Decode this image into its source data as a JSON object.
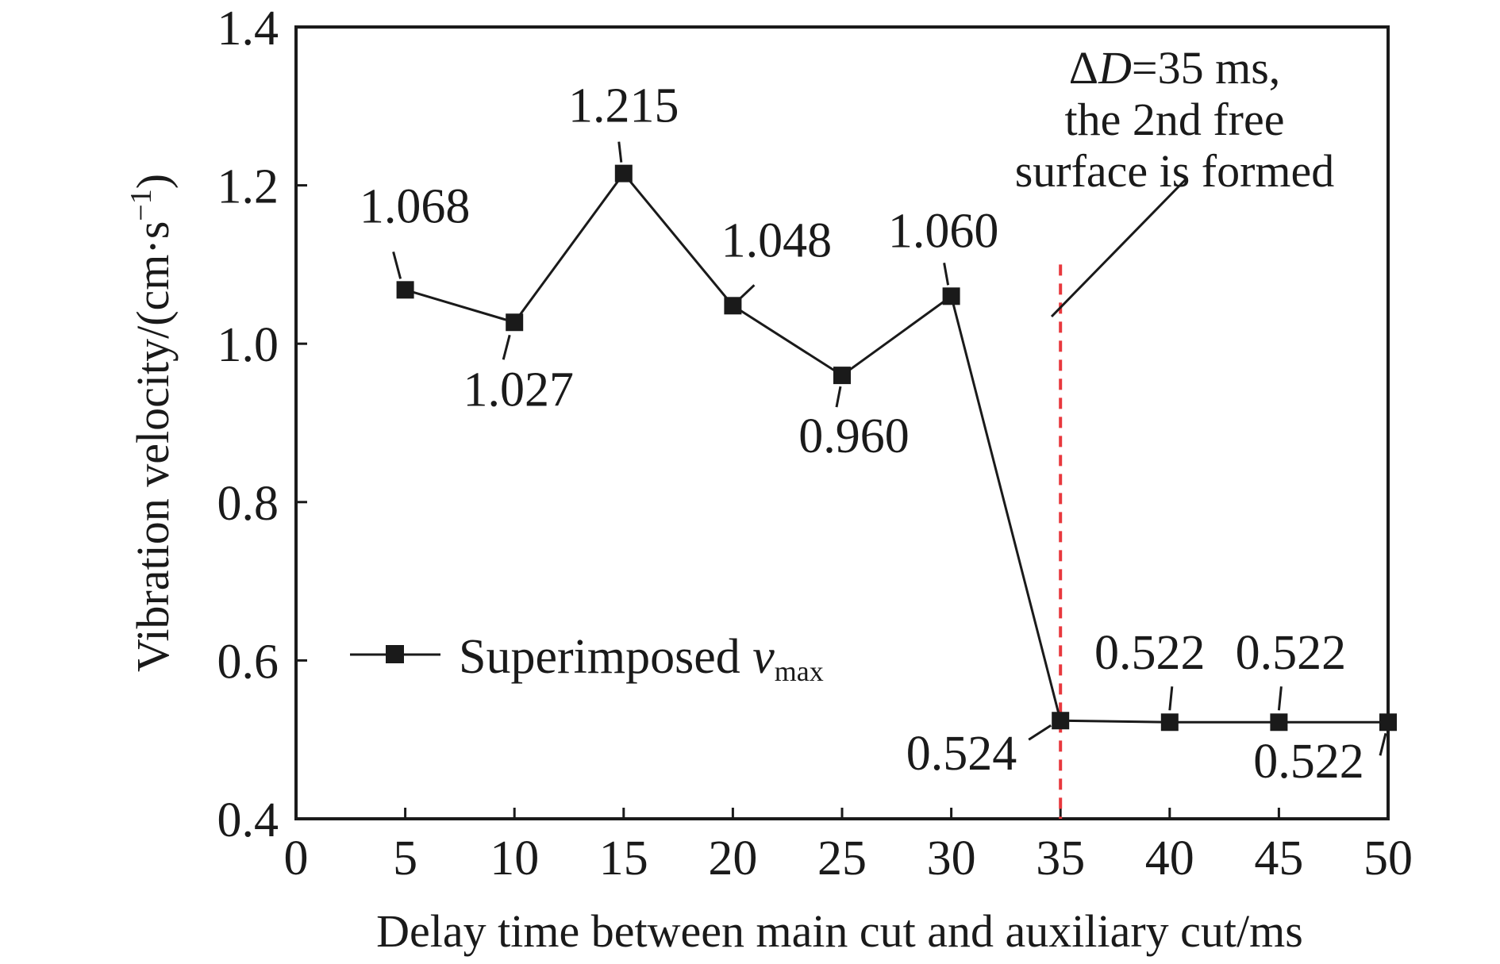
{
  "chart_data": {
    "type": "line",
    "x": [
      5,
      10,
      15,
      20,
      25,
      30,
      35,
      40,
      45,
      50
    ],
    "series": [
      {
        "name": "Superimposed v_max",
        "values": [
          1.068,
          1.027,
          1.215,
          1.048,
          0.96,
          1.06,
          0.524,
          0.522,
          0.522,
          0.522
        ],
        "labels": [
          "1.068",
          "1.027",
          "1.215",
          "1.048",
          "0.960",
          "1.060",
          "0.524",
          "0.522",
          "0.522",
          "0.522"
        ],
        "color": "#1a1a1a",
        "marker": "square"
      }
    ],
    "xlabel": "Delay time between main cut and auxiliary cut/ms",
    "ylabel": "Vibration velocity/(cm·s",
    "ylabel_sup": "−1",
    "ylabel_close": ")",
    "xlim": [
      0,
      50
    ],
    "ylim": [
      0.4,
      1.4
    ],
    "x_ticks": [
      "0",
      "5",
      "10",
      "15",
      "20",
      "25",
      "30",
      "35",
      "40",
      "45",
      "50"
    ],
    "y_ticks": [
      "0.4",
      "0.6",
      "0.8",
      "1.0",
      "1.2",
      "1.4"
    ],
    "grid": false,
    "legend": {
      "position": "lower-left",
      "text_main": "Superimposed ",
      "text_var": "v",
      "text_sub": "max"
    },
    "reference_line": {
      "x": 35,
      "color": "#e8383d",
      "style": "dashed"
    },
    "annotation": {
      "prefix": "Δ",
      "var": "D",
      "line1_rest": "=35 ms,",
      "line2": "the 2nd free",
      "line3": "surface is formed"
    }
  }
}
